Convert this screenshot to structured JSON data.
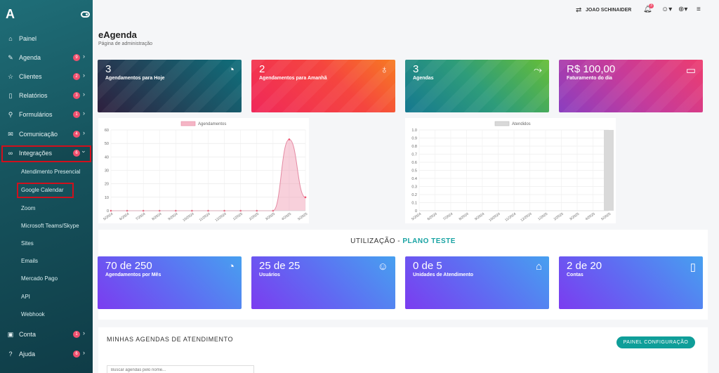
{
  "sidebar": {
    "logo": "A",
    "items": [
      {
        "label": "Painel",
        "icon": "⌂",
        "badge": "",
        "chevron": ""
      },
      {
        "label": "Agenda",
        "icon": "✎",
        "badge": "9",
        "chevron": "›"
      },
      {
        "label": "Clientes",
        "icon": "☆",
        "badge": "2",
        "chevron": "›"
      },
      {
        "label": "Relatórios",
        "icon": "▯",
        "badge": "3",
        "chevron": "›"
      },
      {
        "label": "Formulários",
        "icon": "⚲",
        "badge": "1",
        "chevron": "›"
      },
      {
        "label": "Comunicação",
        "icon": "✉",
        "badge": "4",
        "chevron": "›"
      },
      {
        "label": "Integrações",
        "icon": "∞",
        "badge": "6",
        "chevron": "›"
      },
      {
        "label": "Conta",
        "icon": "▣",
        "badge": "1",
        "chevron": "›"
      },
      {
        "label": "Ajuda",
        "icon": "?",
        "badge": "6",
        "chevron": "›"
      }
    ],
    "subitems": [
      "Atendimento Presencial",
      "Google Calendar",
      "Zoom",
      "Microsoft Teams/Skype",
      "Sites",
      "Emails",
      "Mercado Pago",
      "API",
      "Webhook"
    ]
  },
  "topbar": {
    "user": "JOAO SCHINAIDER",
    "swap_icon": "⇄",
    "bell_badge": "3"
  },
  "header": {
    "title": "eAgenda",
    "subtitle": "Página de administração"
  },
  "stats": [
    {
      "value": "3",
      "label": "Agendamentos para Hoje",
      "icon": "◔"
    },
    {
      "value": "2",
      "label": "Agendamentos para Amanhã",
      "icon": "♁"
    },
    {
      "value": "3",
      "label": "Agendas",
      "icon": "⤳"
    },
    {
      "value": "R$ 100,00",
      "label": "Faturamento do dia",
      "icon": "▭"
    }
  ],
  "chart_data": [
    {
      "type": "area",
      "legend": "Agendamentos",
      "categories": [
        "5/2024",
        "6/2024",
        "7/2024",
        "8/2024",
        "9/2024",
        "10/2024",
        "11/2024",
        "12/2024",
        "1/2025",
        "2/2025",
        "3/2025",
        "4/2025",
        "5/2025"
      ],
      "values": [
        0,
        0,
        0,
        0,
        0,
        0,
        0,
        0,
        0,
        0,
        0,
        53,
        10
      ],
      "ylim": [
        0,
        60
      ],
      "yticks": [
        "0",
        "10",
        "20",
        "30",
        "40",
        "50",
        "60"
      ],
      "color": "#f5b6c6"
    },
    {
      "type": "bar",
      "legend": "Atendidos",
      "categories": [
        "5/2024",
        "6/2024",
        "7/2024",
        "8/2024",
        "9/2024",
        "10/2024",
        "11/2024",
        "12/2024",
        "1/2025",
        "2/2025",
        "3/2025",
        "4/2025",
        "5/2025"
      ],
      "values": [
        0,
        0,
        0,
        0,
        0,
        0,
        0,
        0,
        0,
        0,
        0,
        0,
        1.0
      ],
      "ylim": [
        0,
        1
      ],
      "yticks": [
        "0",
        "0.1",
        "0.2",
        "0.3",
        "0.4",
        "0.5",
        "0.6",
        "0.7",
        "0.8",
        "0.9",
        "1.0"
      ],
      "color": "#d9d9d9"
    }
  ],
  "utilization": {
    "title": "UTILIZAÇÃO - ",
    "plan": "PLANO TESTE",
    "cards": [
      {
        "value": "70 de 250",
        "label": "Agendamentos por Mês",
        "icon": "◔"
      },
      {
        "value": "25 de 25",
        "label": "Usuários",
        "icon": "☺"
      },
      {
        "value": "0 de 5",
        "label": "Unidades de Atendimento",
        "icon": "⌂"
      },
      {
        "value": "2 de 20",
        "label": "Contas",
        "icon": "▯"
      }
    ]
  },
  "agendas": {
    "title": "MINHAS AGENDAS DE ATENDIMENTO",
    "config_button": "PAINEL CONFIGURAÇÃO",
    "search_placeholder": "Buscar agendas pelo nome..."
  }
}
